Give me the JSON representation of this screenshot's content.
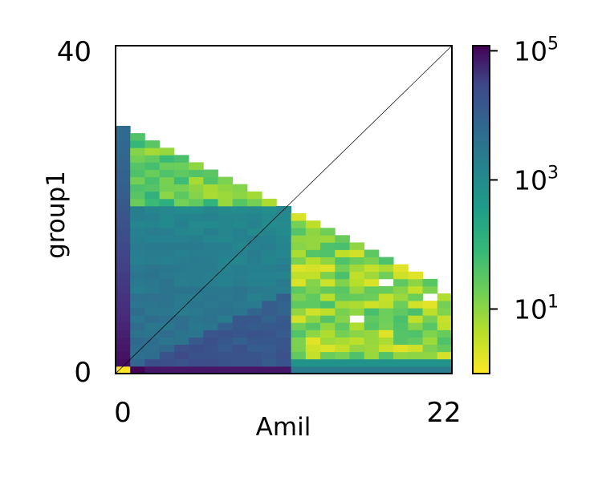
{
  "chart_data": {
    "type": "heatmap",
    "title": "",
    "xlabel": "Amil",
    "ylabel": "group1",
    "xlim": [
      0,
      22
    ],
    "ylim": [
      0,
      40
    ],
    "x_tick_labels": [
      "0",
      "22"
    ],
    "y_tick_labels": [
      "0",
      "40"
    ],
    "grid_columns": 23,
    "grid_rows": 45,
    "colormap": "viridis_r",
    "color_scale": "log",
    "colorbar": {
      "min": 1,
      "max": 120000,
      "ticks": [
        {
          "value": 10,
          "label_base": "10",
          "label_exp": "1"
        },
        {
          "value": 1000,
          "label_base": "10",
          "label_exp": "3"
        },
        {
          "value": 100000,
          "label_base": "10",
          "label_exp": "5"
        }
      ]
    },
    "diagonal_reference_line": true,
    "column_heights": [
      34,
      33,
      32,
      31,
      30,
      29,
      28,
      27,
      26,
      25,
      24,
      23,
      22,
      21,
      20,
      19,
      18,
      17,
      16,
      15,
      14,
      13,
      11
    ],
    "missing_cells": [
      [
        18,
        12
      ],
      [
        16,
        7
      ],
      [
        21,
        10
      ]
    ],
    "colors": {
      "frame": "#000000",
      "diagonal": "#000000"
    }
  }
}
